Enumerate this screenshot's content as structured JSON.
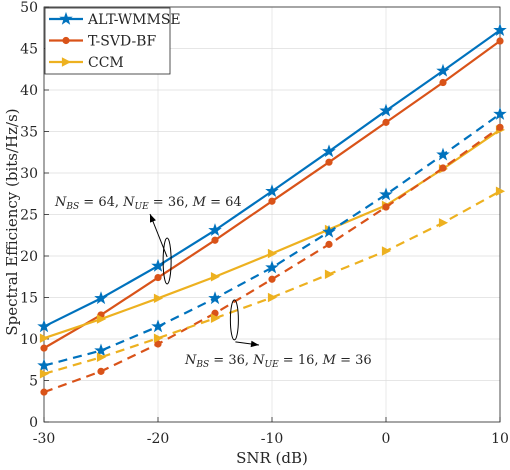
{
  "chart_data": {
    "type": "line",
    "xlabel": "SNR (dB)",
    "ylabel": "Spectral Efficiency (bits/Hz/s)",
    "xlim": [
      -30,
      10
    ],
    "ylim": [
      0,
      50
    ],
    "xticks": [
      -30,
      -20,
      -10,
      0,
      10
    ],
    "yticks": [
      0,
      5,
      10,
      15,
      20,
      25,
      30,
      35,
      40,
      45,
      50
    ],
    "grid": true,
    "legend_position": "top-left",
    "x": [
      -30,
      -25,
      -20,
      -15,
      -10,
      -5,
      0,
      5,
      10
    ],
    "series": [
      {
        "name": "ALT-WMMSE",
        "group": 1,
        "color": "#0072BD",
        "marker": "star",
        "dash": "solid",
        "values": [
          11.5,
          14.9,
          18.8,
          23.1,
          27.8,
          32.6,
          37.5,
          42.3,
          47.2
        ]
      },
      {
        "name": "T-SVD-BF",
        "group": 1,
        "color": "#D95319",
        "marker": "circle",
        "dash": "solid",
        "values": [
          8.9,
          12.9,
          17.4,
          21.9,
          26.6,
          31.3,
          36.1,
          40.9,
          45.9
        ]
      },
      {
        "name": "CCM",
        "group": 1,
        "color": "#EDB120",
        "marker": "triangle-right",
        "dash": "solid",
        "values": [
          10.1,
          12.4,
          14.9,
          17.5,
          20.3,
          23.2,
          26.1,
          30.5,
          35.2
        ]
      },
      {
        "name": "ALT-WMMSE",
        "group": 2,
        "color": "#0072BD",
        "marker": "star",
        "dash": "dashed",
        "values": [
          6.8,
          8.6,
          11.5,
          14.9,
          18.6,
          22.9,
          27.4,
          32.2,
          37.1
        ]
      },
      {
        "name": "T-SVD-BF",
        "group": 2,
        "color": "#D95319",
        "marker": "circle",
        "dash": "dashed",
        "values": [
          3.6,
          6.1,
          9.4,
          13.1,
          17.2,
          21.4,
          25.9,
          30.6,
          35.5
        ]
      },
      {
        "name": "CCM",
        "group": 2,
        "color": "#EDB120",
        "marker": "triangle-right",
        "dash": "dashed",
        "values": [
          5.8,
          7.8,
          10.1,
          12.5,
          15.0,
          17.8,
          20.6,
          24.0,
          27.8
        ]
      }
    ],
    "annotations": [
      {
        "id": "upper",
        "text": "N_BS = 64, N_UE = 36, M = 64",
        "x": -19.2,
        "y": 19.4
      },
      {
        "id": "lower",
        "text": "N_BS = 36, N_UE = 16, M = 36",
        "x": -13.3,
        "y": 12.3
      }
    ]
  },
  "labels": {
    "xlabel": "SNR (dB)",
    "ylabel": "Spectral Efficiency (bits/Hz/s)",
    "legend": [
      "ALT-WMMSE",
      "T-SVD-BF",
      "CCM"
    ],
    "anno_upper": {
      "nbs": "64",
      "nue": "36",
      "m": "64"
    },
    "anno_lower": {
      "nbs": "36",
      "nue": "16",
      "m": "36"
    },
    "sub_bs": "BS",
    "sub_ue": "UE"
  }
}
